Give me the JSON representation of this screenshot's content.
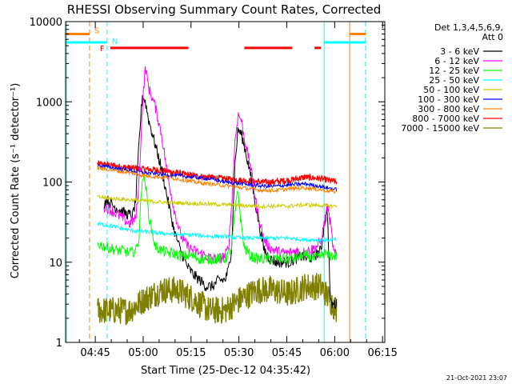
{
  "chart_data": {
    "type": "line",
    "title": "RHESSI Observing Summary Count Rates, Corrected",
    "xlabel": "Start Time (25-Dec-12 04:35:42)",
    "ylabel": "Corrected Count Rate (s⁻¹ detector⁻¹)",
    "x_unit": "minutes after 04:35:42",
    "xlim": [
      0,
      100
    ],
    "ylim": [
      1,
      10000
    ],
    "y_scale": "log",
    "x_ticks": [
      {
        "label": "04:45",
        "x": 9.3
      },
      {
        "label": "05:00",
        "x": 24.3
      },
      {
        "label": "05:15",
        "x": 39.3
      },
      {
        "label": "05:30",
        "x": 54.3
      },
      {
        "label": "05:45",
        "x": 69.3
      },
      {
        "label": "06:00",
        "x": 84.3
      },
      {
        "label": "06:15",
        "x": 99.3
      }
    ],
    "y_ticks": [
      {
        "label": "1",
        "y": 1
      },
      {
        "label": "10",
        "y": 10
      },
      {
        "label": "100",
        "y": 100
      },
      {
        "label": "1000",
        "y": 1000
      },
      {
        "label": "10000",
        "y": 10000
      }
    ],
    "legend_header": [
      "Det 1,3,4,5,6,9,",
      "Att 0"
    ],
    "legend_position": "right",
    "footer": "21-Oct-2021 23:07",
    "series": [
      {
        "name": "3 - 6 keV",
        "color": "#000000",
        "x": [
          12,
          13,
          15,
          17,
          19,
          21,
          22,
          23,
          24,
          25,
          26,
          28,
          30,
          32,
          34,
          36,
          38,
          40,
          42,
          44,
          46,
          48,
          50,
          51,
          52,
          53,
          54,
          55,
          56,
          58,
          60,
          62,
          64,
          66,
          68,
          70,
          72,
          74,
          76,
          78,
          80,
          81,
          82,
          83,
          84,
          85
        ],
        "y": [
          55,
          60,
          50,
          45,
          40,
          38,
          60,
          300,
          1200,
          1000,
          600,
          300,
          150,
          60,
          25,
          14,
          9,
          7,
          6,
          5,
          5,
          6,
          6,
          8,
          15,
          150,
          450,
          400,
          280,
          120,
          40,
          15,
          11,
          10,
          10,
          10,
          11,
          12,
          11,
          12,
          14,
          30,
          45,
          3,
          3,
          3
        ]
      },
      {
        "name": "6 - 12 keV",
        "color": "#ff00ff",
        "x": [
          12,
          14,
          16,
          18,
          20,
          22,
          23,
          24,
          25,
          26,
          28,
          30,
          32,
          34,
          36,
          38,
          40,
          42,
          44,
          46,
          48,
          50,
          51,
          52,
          53,
          54,
          55,
          56,
          58,
          60,
          62,
          64,
          66,
          68,
          70,
          72,
          74,
          76,
          78,
          80,
          81,
          82,
          83,
          84,
          85
        ],
        "y": [
          50,
          45,
          40,
          35,
          30,
          35,
          100,
          800,
          2800,
          1500,
          900,
          400,
          120,
          45,
          22,
          16,
          14,
          13,
          12,
          11,
          11,
          12,
          15,
          50,
          300,
          700,
          600,
          350,
          150,
          45,
          20,
          15,
          14,
          13,
          13,
          14,
          13,
          14,
          15,
          18,
          30,
          50,
          30,
          13,
          12
        ]
      },
      {
        "name": "12 - 25 keV",
        "color": "#00ff00",
        "x": [
          10,
          12,
          14,
          16,
          18,
          20,
          22,
          23,
          24,
          25,
          26,
          28,
          30,
          32,
          34,
          36,
          38,
          40,
          42,
          44,
          46,
          48,
          50,
          52,
          53,
          54,
          55,
          56,
          58,
          60,
          62,
          64,
          66,
          68,
          70,
          72,
          74,
          76,
          78,
          80,
          81,
          82,
          83,
          84,
          85
        ],
        "y": [
          17,
          16,
          15,
          14,
          14,
          13,
          14,
          20,
          120,
          100,
          40,
          16,
          14,
          13,
          13,
          12,
          12,
          12,
          11,
          11,
          11,
          11,
          11,
          15,
          40,
          80,
          30,
          15,
          12,
          11,
          11,
          11,
          11,
          11,
          11,
          11,
          12,
          12,
          11,
          12,
          13,
          12,
          12,
          12,
          12
        ]
      },
      {
        "name": "25 - 50 keV",
        "color": "#00ffff",
        "x": [
          10,
          15,
          20,
          25,
          30,
          35,
          40,
          45,
          50,
          55,
          60,
          65,
          70,
          75,
          80,
          85
        ],
        "y": [
          30,
          28,
          25,
          24,
          23,
          22,
          22,
          21,
          21,
          20,
          20,
          20,
          20,
          19,
          19,
          19
        ]
      },
      {
        "name": "50 - 100 keV",
        "color": "#cccc00",
        "x": [
          10,
          15,
          20,
          25,
          30,
          35,
          40,
          45,
          50,
          55,
          60,
          65,
          70,
          75,
          80,
          85
        ],
        "y": [
          65,
          62,
          60,
          58,
          56,
          55,
          54,
          53,
          52,
          51,
          50,
          50,
          50,
          52,
          51,
          50
        ]
      },
      {
        "name": "100 - 300 keV",
        "color": "#0000ff",
        "x": [
          10,
          15,
          20,
          25,
          30,
          35,
          40,
          45,
          50,
          55,
          60,
          65,
          70,
          75,
          80,
          85
        ],
        "y": [
          160,
          150,
          140,
          130,
          125,
          120,
          115,
          110,
          100,
          95,
          90,
          88,
          92,
          95,
          88,
          80
        ]
      },
      {
        "name": "300 - 800 keV",
        "color": "#ff8000",
        "x": [
          10,
          15,
          20,
          25,
          30,
          35,
          40,
          45,
          50,
          55,
          60,
          65,
          70,
          75,
          80,
          85
        ],
        "y": [
          150,
          140,
          130,
          120,
          115,
          110,
          100,
          95,
          90,
          85,
          80,
          78,
          82,
          85,
          80,
          75
        ]
      }
    ],
    "bands": [
      {
        "name": "800 - 7000 keV",
        "color": "#ff0000",
        "x": [
          10,
          15,
          20,
          25,
          30,
          35,
          40,
          45,
          50,
          55,
          60,
          65,
          70,
          75,
          80,
          85
        ],
        "y": [
          170,
          160,
          150,
          145,
          140,
          130,
          120,
          115,
          110,
          105,
          100,
          100,
          105,
          115,
          110,
          100
        ]
      },
      {
        "name": "7000 - 15000 keV",
        "color": "#808000",
        "x": [
          10,
          15,
          20,
          25,
          30,
          35,
          40,
          45,
          50,
          55,
          60,
          65,
          70,
          75,
          80,
          85
        ],
        "y": [
          2.5,
          2.5,
          2.5,
          3.5,
          4.5,
          4.5,
          3.5,
          2.5,
          2.5,
          3.5,
          4.5,
          4.5,
          4,
          5,
          5,
          2.5
        ]
      }
    ],
    "flag_bars": [
      {
        "label": "S",
        "color": "#ff8000",
        "y": 7000,
        "segments": [
          [
            0,
            7.5
          ],
          [
            89,
            94
          ]
        ]
      },
      {
        "label": "N",
        "color": "#00ffff",
        "y": 5500,
        "segments": [
          [
            0,
            13
          ],
          [
            81,
            94
          ]
        ]
      },
      {
        "label": "F",
        "color": "#ff0000",
        "y": 4700,
        "segments": [
          [
            14,
            38.5
          ],
          [
            56,
            71
          ],
          [
            78,
            80
          ]
        ]
      }
    ],
    "vlines": [
      {
        "x": 7.5,
        "color": "#ff8000",
        "style": "dashed"
      },
      {
        "x": 13,
        "color": "#00ffff",
        "style": "dashed"
      },
      {
        "x": 0.3,
        "color": "#00ffff",
        "style": "solid"
      },
      {
        "x": 81,
        "color": "#00ffff",
        "style": "solid"
      },
      {
        "x": 89,
        "color": "#ff8000",
        "style": "solid"
      },
      {
        "x": 94,
        "color": "#ff8000",
        "style": "dashed"
      },
      {
        "x": 94,
        "color": "#00ffff",
        "style": "dashed"
      }
    ]
  }
}
